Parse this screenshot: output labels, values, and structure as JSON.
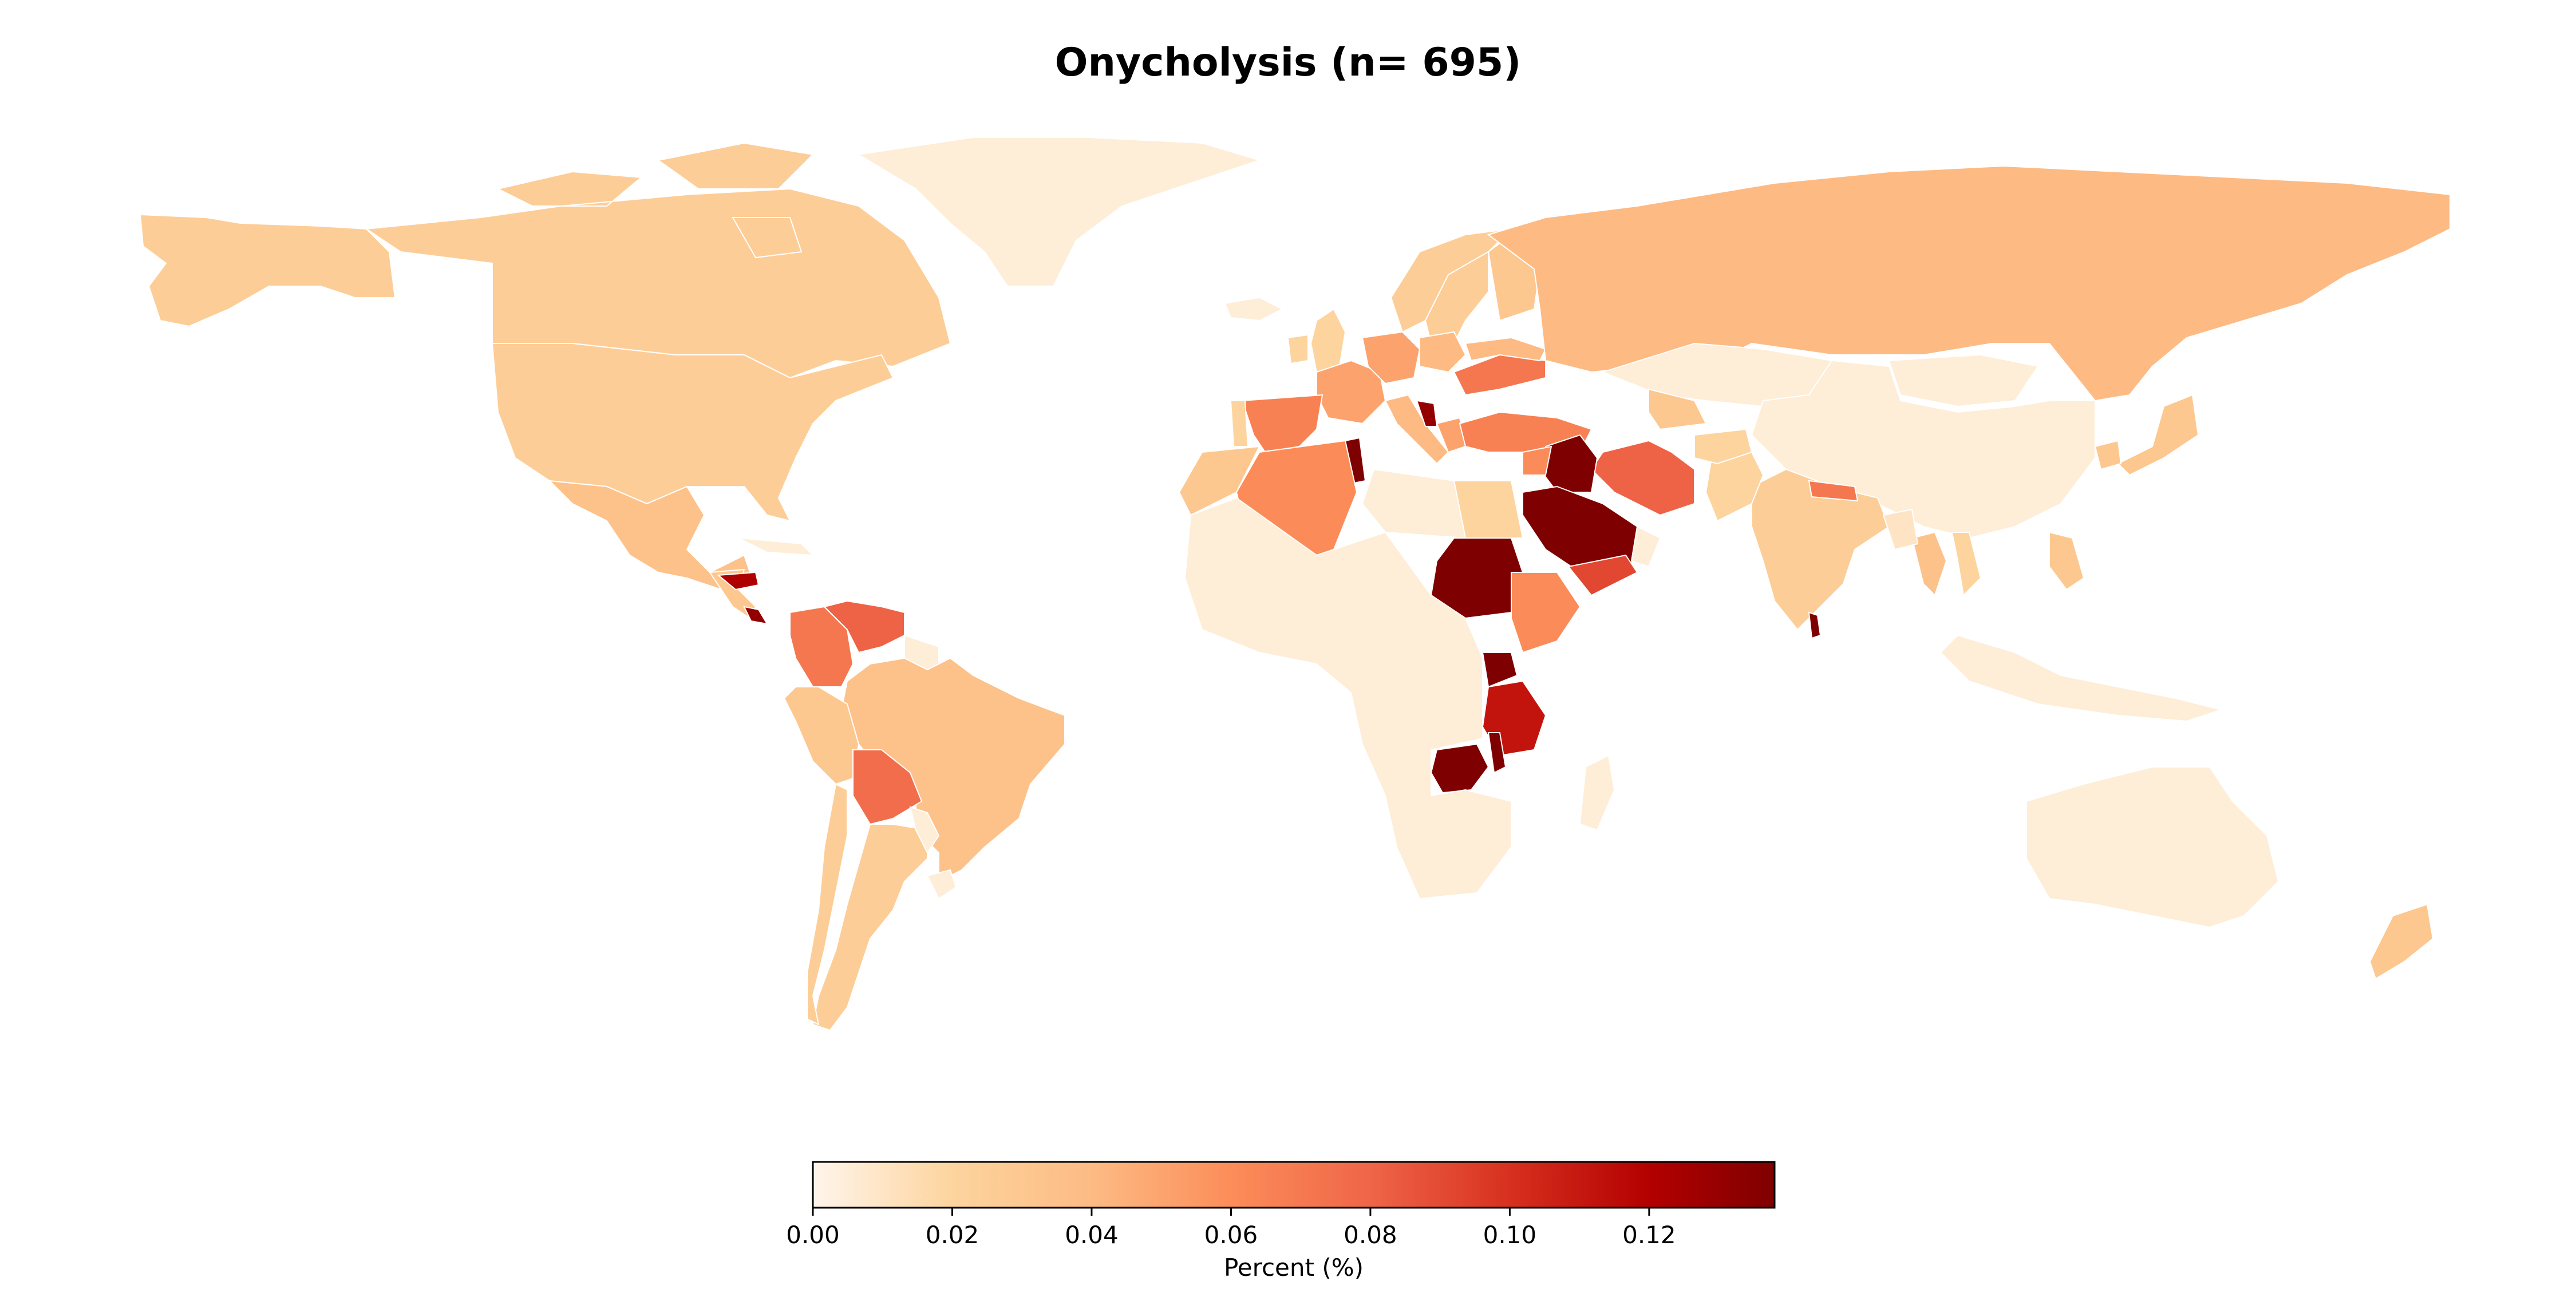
{
  "title": "Onycholysis (n= 695)",
  "colorbar": {
    "label": "Percent (%)",
    "ticks": [
      "0.00",
      "0.02",
      "0.04",
      "0.06",
      "0.08",
      "0.10",
      "0.12"
    ],
    "tick_values": [
      0.0,
      0.02,
      0.04,
      0.06,
      0.08,
      0.1,
      0.12
    ],
    "range": [
      0.0,
      0.138
    ],
    "colormap": "OrRd",
    "colors": [
      "#fff5eb",
      "#fdd49e",
      "#fdbb84",
      "#fc8d59",
      "#ef6548",
      "#d7301f",
      "#b30000",
      "#7f0000"
    ]
  },
  "chart_data": {
    "type": "choropleth",
    "value_label": "Percent (%)",
    "regions": [
      {
        "name": "Canada",
        "value": 0.025
      },
      {
        "name": "United States",
        "value": 0.025
      },
      {
        "name": "Alaska",
        "value": 0.025
      },
      {
        "name": "Greenland",
        "value": 0.005
      },
      {
        "name": "Mexico",
        "value": 0.035
      },
      {
        "name": "Central America",
        "value": 0.03
      },
      {
        "name": "Cuba",
        "value": 0.005
      },
      {
        "name": "Honduras",
        "value": 0.12
      },
      {
        "name": "Costa Rica",
        "value": 0.13
      },
      {
        "name": "Colombia",
        "value": 0.07
      },
      {
        "name": "Venezuela",
        "value": 0.08
      },
      {
        "name": "Guyana",
        "value": 0.005
      },
      {
        "name": "Brazil",
        "value": 0.035
      },
      {
        "name": "Peru",
        "value": 0.03
      },
      {
        "name": "Bolivia",
        "value": 0.075
      },
      {
        "name": "Argentina",
        "value": 0.025
      },
      {
        "name": "Chile",
        "value": 0.025
      },
      {
        "name": "Paraguay",
        "value": 0.005
      },
      {
        "name": "Uruguay",
        "value": 0.005
      },
      {
        "name": "Iceland",
        "value": 0.005
      },
      {
        "name": "Norway",
        "value": 0.025
      },
      {
        "name": "Sweden",
        "value": 0.025
      },
      {
        "name": "Finland",
        "value": 0.03
      },
      {
        "name": "United Kingdom",
        "value": 0.02
      },
      {
        "name": "Ireland",
        "value": 0.02
      },
      {
        "name": "France",
        "value": 0.05
      },
      {
        "name": "Germany",
        "value": 0.05
      },
      {
        "name": "Poland",
        "value": 0.04
      },
      {
        "name": "Italy",
        "value": 0.04
      },
      {
        "name": "Spain",
        "value": 0.065
      },
      {
        "name": "Portugal",
        "value": 0.02
      },
      {
        "name": "Romania",
        "value": 0.07
      },
      {
        "name": "Ukraine",
        "value": 0.04
      },
      {
        "name": "Greece",
        "value": 0.05
      },
      {
        "name": "Albania",
        "value": 0.13
      },
      {
        "name": "Turkey",
        "value": 0.065
      },
      {
        "name": "Russia",
        "value": 0.04
      },
      {
        "name": "Kazakhstan",
        "value": 0.005
      },
      {
        "name": "Mongolia",
        "value": 0.005
      },
      {
        "name": "China",
        "value": 0.005
      },
      {
        "name": "Japan",
        "value": 0.03
      },
      {
        "name": "South Korea",
        "value": 0.03
      },
      {
        "name": "India",
        "value": 0.025
      },
      {
        "name": "Nepal",
        "value": 0.07
      },
      {
        "name": "Pakistan",
        "value": 0.02
      },
      {
        "name": "Afghanistan",
        "value": 0.02
      },
      {
        "name": "Uzbekistan",
        "value": 0.03
      },
      {
        "name": "Iran",
        "value": 0.08
      },
      {
        "name": "Iraq",
        "value": 0.138
      },
      {
        "name": "Saudi Arabia",
        "value": 0.138
      },
      {
        "name": "Yemen",
        "value": 0.09
      },
      {
        "name": "Oman",
        "value": 0.005
      },
      {
        "name": "Syria",
        "value": 0.06
      },
      {
        "name": "Egypt",
        "value": 0.02
      },
      {
        "name": "Libya",
        "value": 0.005
      },
      {
        "name": "Tunisia",
        "value": 0.138
      },
      {
        "name": "Algeria",
        "value": 0.06
      },
      {
        "name": "Morocco",
        "value": 0.03
      },
      {
        "name": "Sudan",
        "value": 0.138
      },
      {
        "name": "Ethiopia",
        "value": 0.06
      },
      {
        "name": "Uganda",
        "value": 0.138
      },
      {
        "name": "Tanzania",
        "value": 0.11
      },
      {
        "name": "Zambia",
        "value": 0.138
      },
      {
        "name": "Malawi",
        "value": 0.138
      },
      {
        "name": "Madagascar",
        "value": 0.005
      },
      {
        "name": "Sub-Saharan Africa (other)",
        "value": 0.005
      },
      {
        "name": "Sri Lanka",
        "value": 0.138
      },
      {
        "name": "Thailand",
        "value": 0.035
      },
      {
        "name": "Myanmar",
        "value": 0.01
      },
      {
        "name": "Vietnam",
        "value": 0.02
      },
      {
        "name": "Philippines",
        "value": 0.03
      },
      {
        "name": "Indonesia",
        "value": 0.005
      },
      {
        "name": "Australia",
        "value": 0.005
      },
      {
        "name": "New Zealand",
        "value": 0.03
      }
    ]
  }
}
